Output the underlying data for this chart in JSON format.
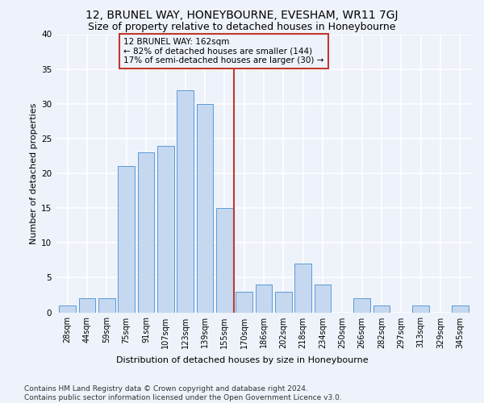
{
  "title": "12, BRUNEL WAY, HONEYBOURNE, EVESHAM, WR11 7GJ",
  "subtitle": "Size of property relative to detached houses in Honeybourne",
  "xlabel": "Distribution of detached houses by size in Honeybourne",
  "ylabel": "Number of detached properties",
  "categories": [
    "28sqm",
    "44sqm",
    "59sqm",
    "75sqm",
    "91sqm",
    "107sqm",
    "123sqm",
    "139sqm",
    "155sqm",
    "170sqm",
    "186sqm",
    "202sqm",
    "218sqm",
    "234sqm",
    "250sqm",
    "266sqm",
    "282sqm",
    "297sqm",
    "313sqm",
    "329sqm",
    "345sqm"
  ],
  "values": [
    1,
    2,
    2,
    21,
    23,
    24,
    32,
    30,
    15,
    3,
    4,
    3,
    7,
    4,
    0,
    2,
    1,
    0,
    1,
    0,
    1
  ],
  "bar_color": "#c5d8f0",
  "bar_edge_color": "#5b9bd5",
  "vline_color": "#c0392b",
  "annotation_text": "12 BRUNEL WAY: 162sqm\n← 82% of detached houses are smaller (144)\n17% of semi-detached houses are larger (30) →",
  "annotation_box_color": "#c0392b",
  "ylim": [
    0,
    40
  ],
  "yticks": [
    0,
    5,
    10,
    15,
    20,
    25,
    30,
    35,
    40
  ],
  "footer_text": "Contains HM Land Registry data © Crown copyright and database right 2024.\nContains public sector information licensed under the Open Government Licence v3.0.",
  "bg_color": "#eef2fa",
  "grid_color": "#ffffff",
  "title_fontsize": 10,
  "subtitle_fontsize": 9,
  "axis_label_fontsize": 8,
  "tick_fontsize": 7,
  "annotation_fontsize": 7.5,
  "footer_fontsize": 6.5
}
